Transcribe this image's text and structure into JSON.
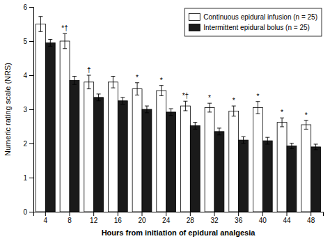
{
  "chart_data": {
    "type": "bar",
    "categories": [
      "4",
      "8",
      "12",
      "16",
      "20",
      "24",
      "28",
      "32",
      "36",
      "40",
      "44",
      "48"
    ],
    "series": [
      {
        "name": "Continuous epidural infusion (n = 25)",
        "color": "#ffffff",
        "values": [
          5.5,
          5.0,
          3.8,
          3.8,
          3.6,
          3.55,
          3.1,
          3.05,
          2.95,
          3.05,
          2.62,
          2.55
        ],
        "errors": [
          0.22,
          0.22,
          0.2,
          0.17,
          0.18,
          0.15,
          0.14,
          0.13,
          0.15,
          0.18,
          0.13,
          0.13
        ],
        "annotations": [
          null,
          "*†",
          "†",
          null,
          "*",
          "*",
          "*†",
          "*",
          "*",
          "*",
          "*",
          "*"
        ]
      },
      {
        "name": "Intermittent epidural bolus (n = 25)",
        "color": "#1a1a1a",
        "values": [
          4.95,
          3.85,
          3.35,
          3.25,
          3.0,
          2.92,
          2.52,
          2.35,
          2.1,
          2.08,
          1.93,
          1.9
        ],
        "errors": [
          0.1,
          0.12,
          0.1,
          0.1,
          0.1,
          0.1,
          0.1,
          0.1,
          0.1,
          0.1,
          0.08,
          0.08
        ]
      }
    ],
    "x_label": "Hours from initiation of epidural analgesia",
    "y_label": "Numeric rating scale (NRS)",
    "ylim": [
      0,
      6
    ],
    "yticks": [
      0,
      1,
      2,
      3,
      4,
      5,
      6
    ],
    "grid": false,
    "legend": "upper right"
  }
}
